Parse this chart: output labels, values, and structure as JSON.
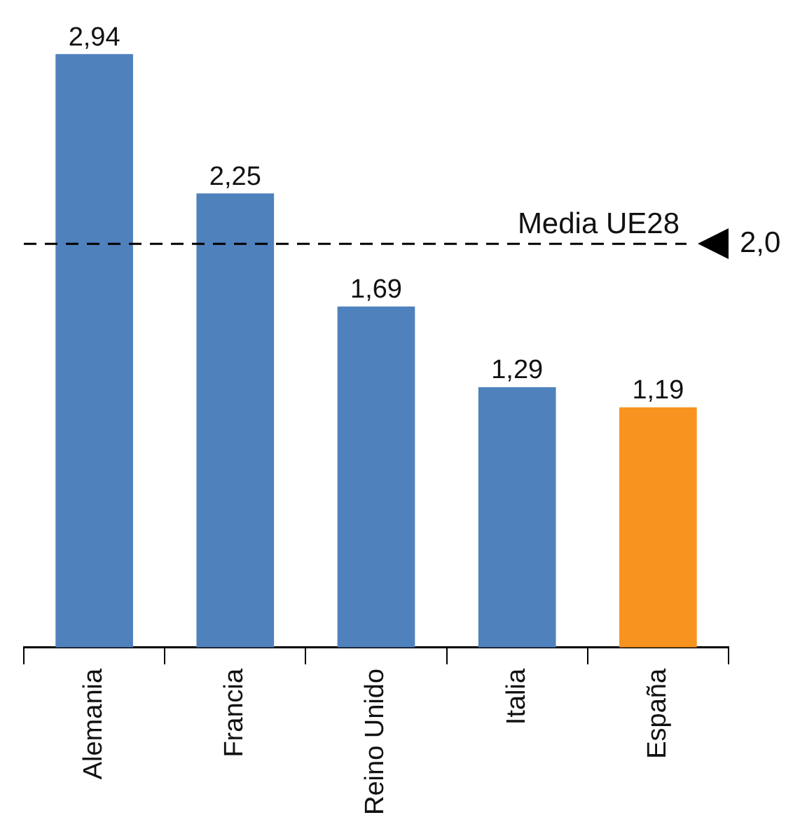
{
  "chart_data": {
    "type": "bar",
    "categories": [
      "Alemania",
      "Francia",
      "Reino Unido",
      "Italia",
      "España"
    ],
    "values": [
      2.94,
      2.25,
      1.69,
      1.29,
      1.19
    ],
    "value_labels": [
      "2,94",
      "2,25",
      "1,69",
      "1,29",
      "1,19"
    ],
    "colors": [
      "#4f81bd",
      "#4f81bd",
      "#4f81bd",
      "#4f81bd",
      "#f7931e"
    ],
    "tick_labels": "x",
    "grid": false,
    "legend": false,
    "ref_lines": [
      {
        "axis": "y",
        "value": 2.0,
        "label": "Media UE28",
        "line_style": "dashed",
        "color": "#000000"
      }
    ],
    "annotations": [
      "2,0"
    ]
  }
}
